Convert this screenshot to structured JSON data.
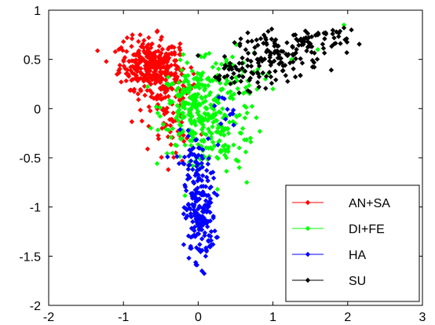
{
  "chart_data": {
    "type": "scatter",
    "title": "",
    "xlabel": "",
    "ylabel": "",
    "xlim": [
      -2,
      3
    ],
    "ylim": [
      -2,
      1
    ],
    "xticks": [
      -2,
      -1,
      0,
      1,
      2,
      3
    ],
    "yticks": [
      -2,
      -1.5,
      -1,
      -0.5,
      0,
      0.5,
      1
    ],
    "xtick_labels": [
      "-2",
      "-1",
      "0",
      "1",
      "2",
      "3"
    ],
    "ytick_labels": [
      "-2",
      "-1.5",
      "-1",
      "-0.5",
      "0",
      "0.5",
      "1"
    ],
    "grid": false,
    "legend_position": "bottom-right",
    "marker": "diamond",
    "series": [
      {
        "name": "AN+SA",
        "color": "#ff0000",
        "clusters": [
          {
            "center": [
              -0.65,
              0.45
            ],
            "spread": [
              0.2,
              0.12
            ],
            "count": 260
          },
          {
            "center": [
              -0.45,
              0.2
            ],
            "spread": [
              0.22,
              0.18
            ],
            "count": 110
          },
          {
            "center": [
              -0.35,
              -0.2
            ],
            "spread": [
              0.15,
              0.2
            ],
            "count": 35
          }
        ],
        "points": [
          [
            -1.0,
            0.68
          ],
          [
            -0.95,
            0.72
          ],
          [
            -0.88,
            0.75
          ],
          [
            -0.55,
            0.78
          ],
          [
            -0.25,
            0.55
          ],
          [
            -0.4,
            -0.62
          ],
          [
            -0.3,
            -0.45
          ],
          [
            -0.15,
            -0.3
          ],
          [
            -1.03,
            0.62
          ],
          [
            -0.5,
            0.7
          ]
        ]
      },
      {
        "name": "DI+FE",
        "color": "#00ff00",
        "clusters": [
          {
            "center": [
              -0.05,
              0.0
            ],
            "spread": [
              0.22,
              0.22
            ],
            "count": 240
          },
          {
            "center": [
              0.3,
              -0.25
            ],
            "spread": [
              0.22,
              0.2
            ],
            "count": 90
          },
          {
            "center": [
              0.35,
              0.3
            ],
            "spread": [
              0.25,
              0.15
            ],
            "count": 50
          }
        ],
        "points": [
          [
            0.65,
            -0.75
          ],
          [
            0.55,
            -0.6
          ],
          [
            0.8,
            0.4
          ],
          [
            1.0,
            0.2
          ],
          [
            1.25,
            0.5
          ],
          [
            1.6,
            0.6
          ],
          [
            1.95,
            0.85
          ],
          [
            -0.2,
            0.55
          ],
          [
            0.1,
            0.55
          ],
          [
            0.4,
            0.45
          ],
          [
            0.9,
            0.3
          ],
          [
            0.55,
            -0.4
          ],
          [
            0.7,
            -0.3
          ]
        ]
      },
      {
        "name": "HA",
        "color": "#0000ff",
        "clusters": [
          {
            "center": [
              0.03,
              -1.1
            ],
            "spread": [
              0.1,
              0.22
            ],
            "count": 170
          },
          {
            "center": [
              -0.05,
              -0.55
            ],
            "spread": [
              0.12,
              0.15
            ],
            "count": 60
          },
          {
            "center": [
              0.3,
              -0.05
            ],
            "spread": [
              0.1,
              0.1
            ],
            "count": 10
          }
        ],
        "points": [
          [
            0.05,
            -1.65
          ],
          [
            0.1,
            -1.5
          ],
          [
            -0.1,
            -1.4
          ],
          [
            0.15,
            -1.4
          ],
          [
            0.35,
            0.1
          ],
          [
            0.45,
            -0.05
          ]
        ]
      },
      {
        "name": "SU",
        "color": "#000000",
        "clusters": [
          {
            "center": [
              1.05,
              0.52
            ],
            "spread": [
              0.28,
              0.12
            ],
            "count": 110
          },
          {
            "center": [
              1.55,
              0.68
            ],
            "spread": [
              0.22,
              0.08
            ],
            "count": 60
          },
          {
            "center": [
              0.55,
              0.35
            ],
            "spread": [
              0.18,
              0.08
            ],
            "count": 35
          }
        ],
        "points": [
          [
            0.28,
            0.3
          ],
          [
            0.35,
            0.32
          ],
          [
            0.45,
            0.4
          ],
          [
            1.95,
            0.82
          ],
          [
            2.05,
            0.8
          ],
          [
            1.85,
            0.78
          ],
          [
            0.9,
            0.72
          ],
          [
            1.3,
            0.75
          ]
        ]
      }
    ]
  }
}
